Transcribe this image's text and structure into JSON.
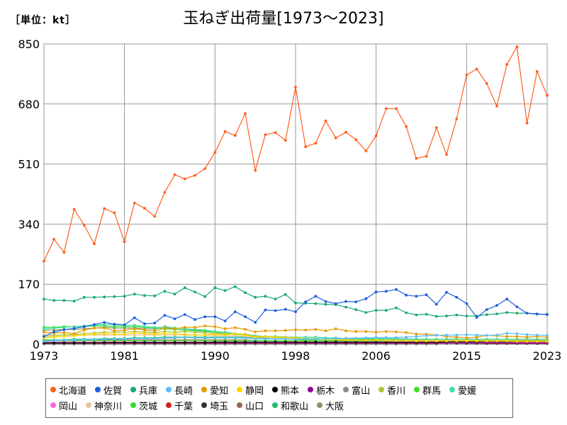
{
  "header": {
    "unit_label": "［単位：kt］",
    "title": "玉ねぎ出荷量[1973～2023]"
  },
  "chart_data": {
    "type": "line",
    "title": "玉ねぎ出荷量[1973～2023]",
    "unit": "［単位：kt］",
    "xlabel": "",
    "ylabel": "",
    "xlim": [
      1973,
      2023
    ],
    "ylim": [
      0,
      850
    ],
    "x_ticks": [
      "1973",
      "1981",
      "1990",
      "1998",
      "2006",
      "2015",
      "2023"
    ],
    "y_ticks": [
      "0",
      "170",
      "340",
      "510",
      "680",
      "850"
    ],
    "grid": true,
    "legend_position": "bottom",
    "x": [
      1973,
      1974,
      1975,
      1976,
      1977,
      1978,
      1979,
      1980,
      1981,
      1982,
      1983,
      1984,
      1985,
      1986,
      1987,
      1988,
      1989,
      1990,
      1991,
      1992,
      1993,
      1994,
      1995,
      1996,
      1997,
      1998,
      1999,
      2000,
      2001,
      2002,
      2003,
      2004,
      2005,
      2006,
      2007,
      2008,
      2009,
      2010,
      2011,
      2012,
      2013,
      2014,
      2015,
      2016,
      2017,
      2018,
      2019,
      2020,
      2021,
      2022,
      2023
    ],
    "series": [
      {
        "name": "北海道",
        "color": "#ff5f1f",
        "values": [
          235,
          297,
          260,
          382,
          337,
          284,
          384,
          372,
          290,
          400,
          385,
          362,
          430,
          480,
          468,
          478,
          497,
          543,
          602,
          591,
          653,
          492,
          593,
          599,
          577,
          728,
          559,
          569,
          632,
          584,
          600,
          579,
          547,
          590,
          667,
          667,
          616,
          526,
          532,
          613,
          537,
          638,
          762,
          779,
          738,
          674,
          792,
          842,
          626,
          772,
          704
        ]
      },
      {
        "name": "佐賀",
        "color": "#1e5fdc",
        "values": [
          22,
          35,
          41,
          45,
          50,
          56,
          62,
          57,
          55,
          75,
          58,
          60,
          82,
          72,
          84,
          70,
          78,
          78,
          66,
          92,
          78,
          62,
          97,
          95,
          99,
          92,
          120,
          136,
          121,
          115,
          121,
          120,
          129,
          148,
          150,
          155,
          139,
          136,
          140,
          113,
          147,
          133,
          115,
          76,
          98,
          110,
          128,
          106,
          88,
          86,
          84
        ]
      },
      {
        "name": "兵庫",
        "color": "#1aa87a",
        "values": [
          128,
          124,
          124,
          122,
          133,
          133,
          134,
          135,
          136,
          142,
          138,
          137,
          150,
          142,
          160,
          148,
          135,
          160,
          152,
          163,
          146,
          133,
          136,
          128,
          141,
          117,
          116,
          115,
          113,
          112,
          105,
          98,
          90,
          96,
          96,
          103,
          89,
          83,
          85,
          79,
          80,
          83,
          80,
          80,
          84,
          86,
          90,
          88,
          88,
          85,
          85
        ]
      },
      {
        "name": "長崎",
        "color": "#5bbfff",
        "values": [
          8,
          10,
          11,
          12,
          12,
          13,
          14,
          14,
          15,
          16,
          16,
          15,
          17,
          18,
          19,
          18,
          17,
          18,
          18,
          18,
          17,
          14,
          15,
          14,
          15,
          14,
          15,
          15,
          16,
          16,
          17,
          17,
          18,
          19,
          19,
          19,
          20,
          22,
          24,
          25,
          26,
          26,
          27,
          26,
          25,
          26,
          31,
          30,
          27,
          26,
          25
        ]
      },
      {
        "name": "愛知",
        "color": "#e69a00",
        "values": [
          34,
          32,
          33,
          30,
          40,
          46,
          46,
          38,
          40,
          44,
          40,
          36,
          46,
          44,
          48,
          48,
          52,
          50,
          44,
          47,
          42,
          35,
          38,
          38,
          39,
          41,
          40,
          42,
          38,
          44,
          38,
          36,
          36,
          34,
          36,
          35,
          33,
          29,
          28,
          26,
          22,
          20,
          18,
          20,
          25,
          24,
          22,
          22,
          20,
          22,
          20
        ]
      },
      {
        "name": "静岡",
        "color": "#ffd400",
        "values": [
          18,
          20,
          22,
          24,
          26,
          28,
          30,
          28,
          28,
          32,
          30,
          28,
          30,
          30,
          28,
          26,
          26,
          28,
          26,
          30,
          26,
          20,
          22,
          20,
          18,
          18,
          16,
          16,
          14,
          14,
          12,
          12,
          11,
          12,
          11,
          10,
          10,
          9,
          9,
          9,
          9,
          9,
          9,
          9,
          9,
          9,
          9,
          8,
          8,
          8,
          8
        ]
      },
      {
        "name": "熊本",
        "color": "#000000",
        "values": [
          4,
          4,
          4,
          4,
          4,
          4,
          5,
          5,
          5,
          5,
          5,
          5,
          5,
          5,
          5,
          5,
          5,
          6,
          6,
          6,
          6,
          6,
          6,
          6,
          6,
          6,
          6,
          6,
          6,
          6,
          6,
          6,
          6,
          6,
          6,
          6,
          6,
          6,
          6,
          6,
          7,
          7,
          7,
          7,
          8,
          8,
          8,
          8,
          8,
          8,
          8
        ]
      },
      {
        "name": "栃木",
        "color": "#990099",
        "values": [
          4,
          4,
          4,
          4,
          4,
          4,
          4,
          4,
          4,
          4,
          4,
          4,
          4,
          4,
          4,
          4,
          4,
          4,
          4,
          4,
          4,
          4,
          4,
          4,
          4,
          4,
          4,
          4,
          4,
          4,
          4,
          4,
          4,
          4,
          4,
          4,
          4,
          4,
          4,
          4,
          4,
          4,
          4,
          4,
          4,
          4,
          4,
          4,
          4,
          4,
          4
        ]
      },
      {
        "name": "富山",
        "color": "#8a8a8a",
        "values": [
          0,
          0,
          0,
          0,
          0,
          0,
          0,
          0,
          0,
          0,
          0,
          0,
          0,
          0,
          0,
          0,
          0,
          0,
          0,
          0,
          0,
          0,
          0,
          0,
          0,
          0,
          0,
          0,
          0,
          0,
          0,
          0,
          0,
          0,
          0,
          0,
          0,
          0,
          0,
          0,
          2,
          2,
          3,
          3,
          4,
          5,
          6,
          7,
          7,
          7,
          7
        ]
      },
      {
        "name": "香川",
        "color": "#a8c837",
        "values": [
          22,
          24,
          26,
          28,
          30,
          32,
          34,
          34,
          34,
          36,
          34,
          32,
          36,
          34,
          36,
          34,
          32,
          30,
          30,
          30,
          28,
          22,
          22,
          20,
          20,
          18,
          16,
          16,
          14,
          14,
          12,
          12,
          11,
          11,
          10,
          10,
          10,
          10,
          10,
          10,
          10,
          10,
          10,
          10,
          10,
          10,
          10,
          10,
          10,
          10,
          10
        ]
      },
      {
        "name": "群馬",
        "color": "#44dd22",
        "values": [
          10,
          10,
          10,
          10,
          10,
          10,
          10,
          10,
          10,
          10,
          10,
          10,
          10,
          10,
          10,
          10,
          10,
          10,
          10,
          10,
          10,
          10,
          10,
          10,
          10,
          10,
          10,
          10,
          10,
          10,
          10,
          10,
          10,
          10,
          10,
          10,
          10,
          10,
          10,
          10,
          10,
          10,
          10,
          10,
          10,
          10,
          10,
          10,
          10,
          10,
          10
        ]
      },
      {
        "name": "愛媛",
        "color": "#44e0a0",
        "values": [
          44,
          46,
          48,
          50,
          52,
          54,
          56,
          55,
          54,
          54,
          50,
          48,
          48,
          46,
          44,
          42,
          40,
          36,
          34,
          30,
          28,
          24,
          22,
          22,
          20,
          20,
          20,
          20,
          18,
          18,
          16,
          16,
          16,
          16,
          16,
          16,
          15,
          15,
          14,
          14,
          14,
          14,
          14,
          14,
          14,
          14,
          14,
          14,
          14,
          14,
          14
        ]
      },
      {
        "name": "岡山",
        "color": "#ff66dd",
        "values": [
          6,
          6,
          6,
          6,
          6,
          6,
          6,
          6,
          6,
          6,
          6,
          6,
          6,
          6,
          6,
          6,
          6,
          6,
          6,
          6,
          6,
          6,
          6,
          6,
          6,
          6,
          6,
          6,
          6,
          6,
          6,
          6,
          6,
          6,
          6,
          6,
          6,
          6,
          6,
          6,
          6,
          6,
          6,
          6,
          6,
          6,
          6,
          6,
          6,
          6,
          6
        ]
      },
      {
        "name": "神奈川",
        "color": "#e8c89a",
        "values": [
          26,
          26,
          26,
          26,
          26,
          26,
          26,
          26,
          26,
          26,
          26,
          26,
          26,
          26,
          26,
          26,
          26,
          24,
          24,
          24,
          22,
          20,
          20,
          18,
          18,
          16,
          16,
          16,
          14,
          14,
          14,
          12,
          12,
          12,
          12,
          12,
          12,
          12,
          12,
          12,
          12,
          12,
          12,
          12,
          12,
          12,
          12,
          12,
          12,
          12,
          12
        ]
      },
      {
        "name": "茨城",
        "color": "#33dd33",
        "values": [
          48,
          48,
          50,
          50,
          50,
          52,
          52,
          50,
          50,
          50,
          48,
          46,
          44,
          42,
          40,
          38,
          36,
          34,
          30,
          28,
          26,
          22,
          20,
          18,
          16,
          14,
          12,
          12,
          10,
          10,
          10,
          10,
          10,
          10,
          10,
          10,
          10,
          10,
          10,
          10,
          10,
          10,
          10,
          10,
          10,
          10,
          10,
          10,
          10,
          10,
          10
        ]
      },
      {
        "name": "千葉",
        "color": "#cc2222",
        "values": [
          3,
          3,
          3,
          3,
          3,
          3,
          3,
          3,
          3,
          3,
          3,
          3,
          3,
          3,
          3,
          3,
          3,
          3,
          3,
          3,
          3,
          3,
          3,
          3,
          3,
          3,
          3,
          3,
          3,
          3,
          3,
          3,
          3,
          3,
          3,
          3,
          3,
          3,
          3,
          3,
          3,
          3,
          3,
          3,
          3,
          3,
          3,
          3,
          3,
          3,
          3
        ]
      },
      {
        "name": "埼玉",
        "color": "#333333",
        "values": [
          2,
          2,
          2,
          2,
          2,
          2,
          2,
          2,
          2,
          2,
          2,
          2,
          2,
          2,
          2,
          2,
          2,
          2,
          2,
          2,
          2,
          2,
          2,
          2,
          2,
          2,
          2,
          2,
          2,
          2,
          2,
          2,
          2,
          2,
          2,
          2,
          2,
          2,
          2,
          2,
          2,
          2,
          2,
          2,
          2,
          2,
          2,
          2,
          2,
          2,
          2
        ]
      },
      {
        "name": "山口",
        "color": "#996655",
        "values": [
          10,
          10,
          10,
          10,
          10,
          12,
          12,
          12,
          12,
          12,
          12,
          12,
          12,
          12,
          12,
          12,
          12,
          12,
          12,
          12,
          12,
          10,
          10,
          10,
          10,
          10,
          10,
          10,
          10,
          10,
          10,
          10,
          10,
          10,
          10,
          10,
          10,
          10,
          10,
          10,
          10,
          10,
          10,
          10,
          10,
          10,
          10,
          10,
          10,
          10,
          10
        ]
      },
      {
        "name": "和歌山",
        "color": "#22bb66",
        "values": [
          12,
          12,
          12,
          14,
          14,
          14,
          16,
          16,
          16,
          18,
          18,
          18,
          20,
          20,
          20,
          20,
          20,
          20,
          20,
          20,
          20,
          18,
          18,
          18,
          18,
          16,
          16,
          16,
          16,
          16,
          14,
          14,
          14,
          14,
          14,
          14,
          14,
          14,
          14,
          14,
          14,
          14,
          14,
          14,
          14,
          14,
          14,
          14,
          14,
          14,
          14
        ]
      },
      {
        "name": "大阪",
        "color": "#889966",
        "values": [
          40,
          40,
          42,
          42,
          44,
          46,
          48,
          46,
          46,
          46,
          44,
          42,
          50,
          46,
          44,
          40,
          38,
          36,
          34,
          30,
          28,
          22,
          20,
          18,
          16,
          14,
          12,
          12,
          10,
          10,
          10,
          10,
          10,
          10,
          10,
          10,
          10,
          10,
          10,
          10,
          10,
          10,
          10,
          10,
          10,
          10,
          10,
          10,
          10,
          10,
          10
        ]
      }
    ]
  }
}
